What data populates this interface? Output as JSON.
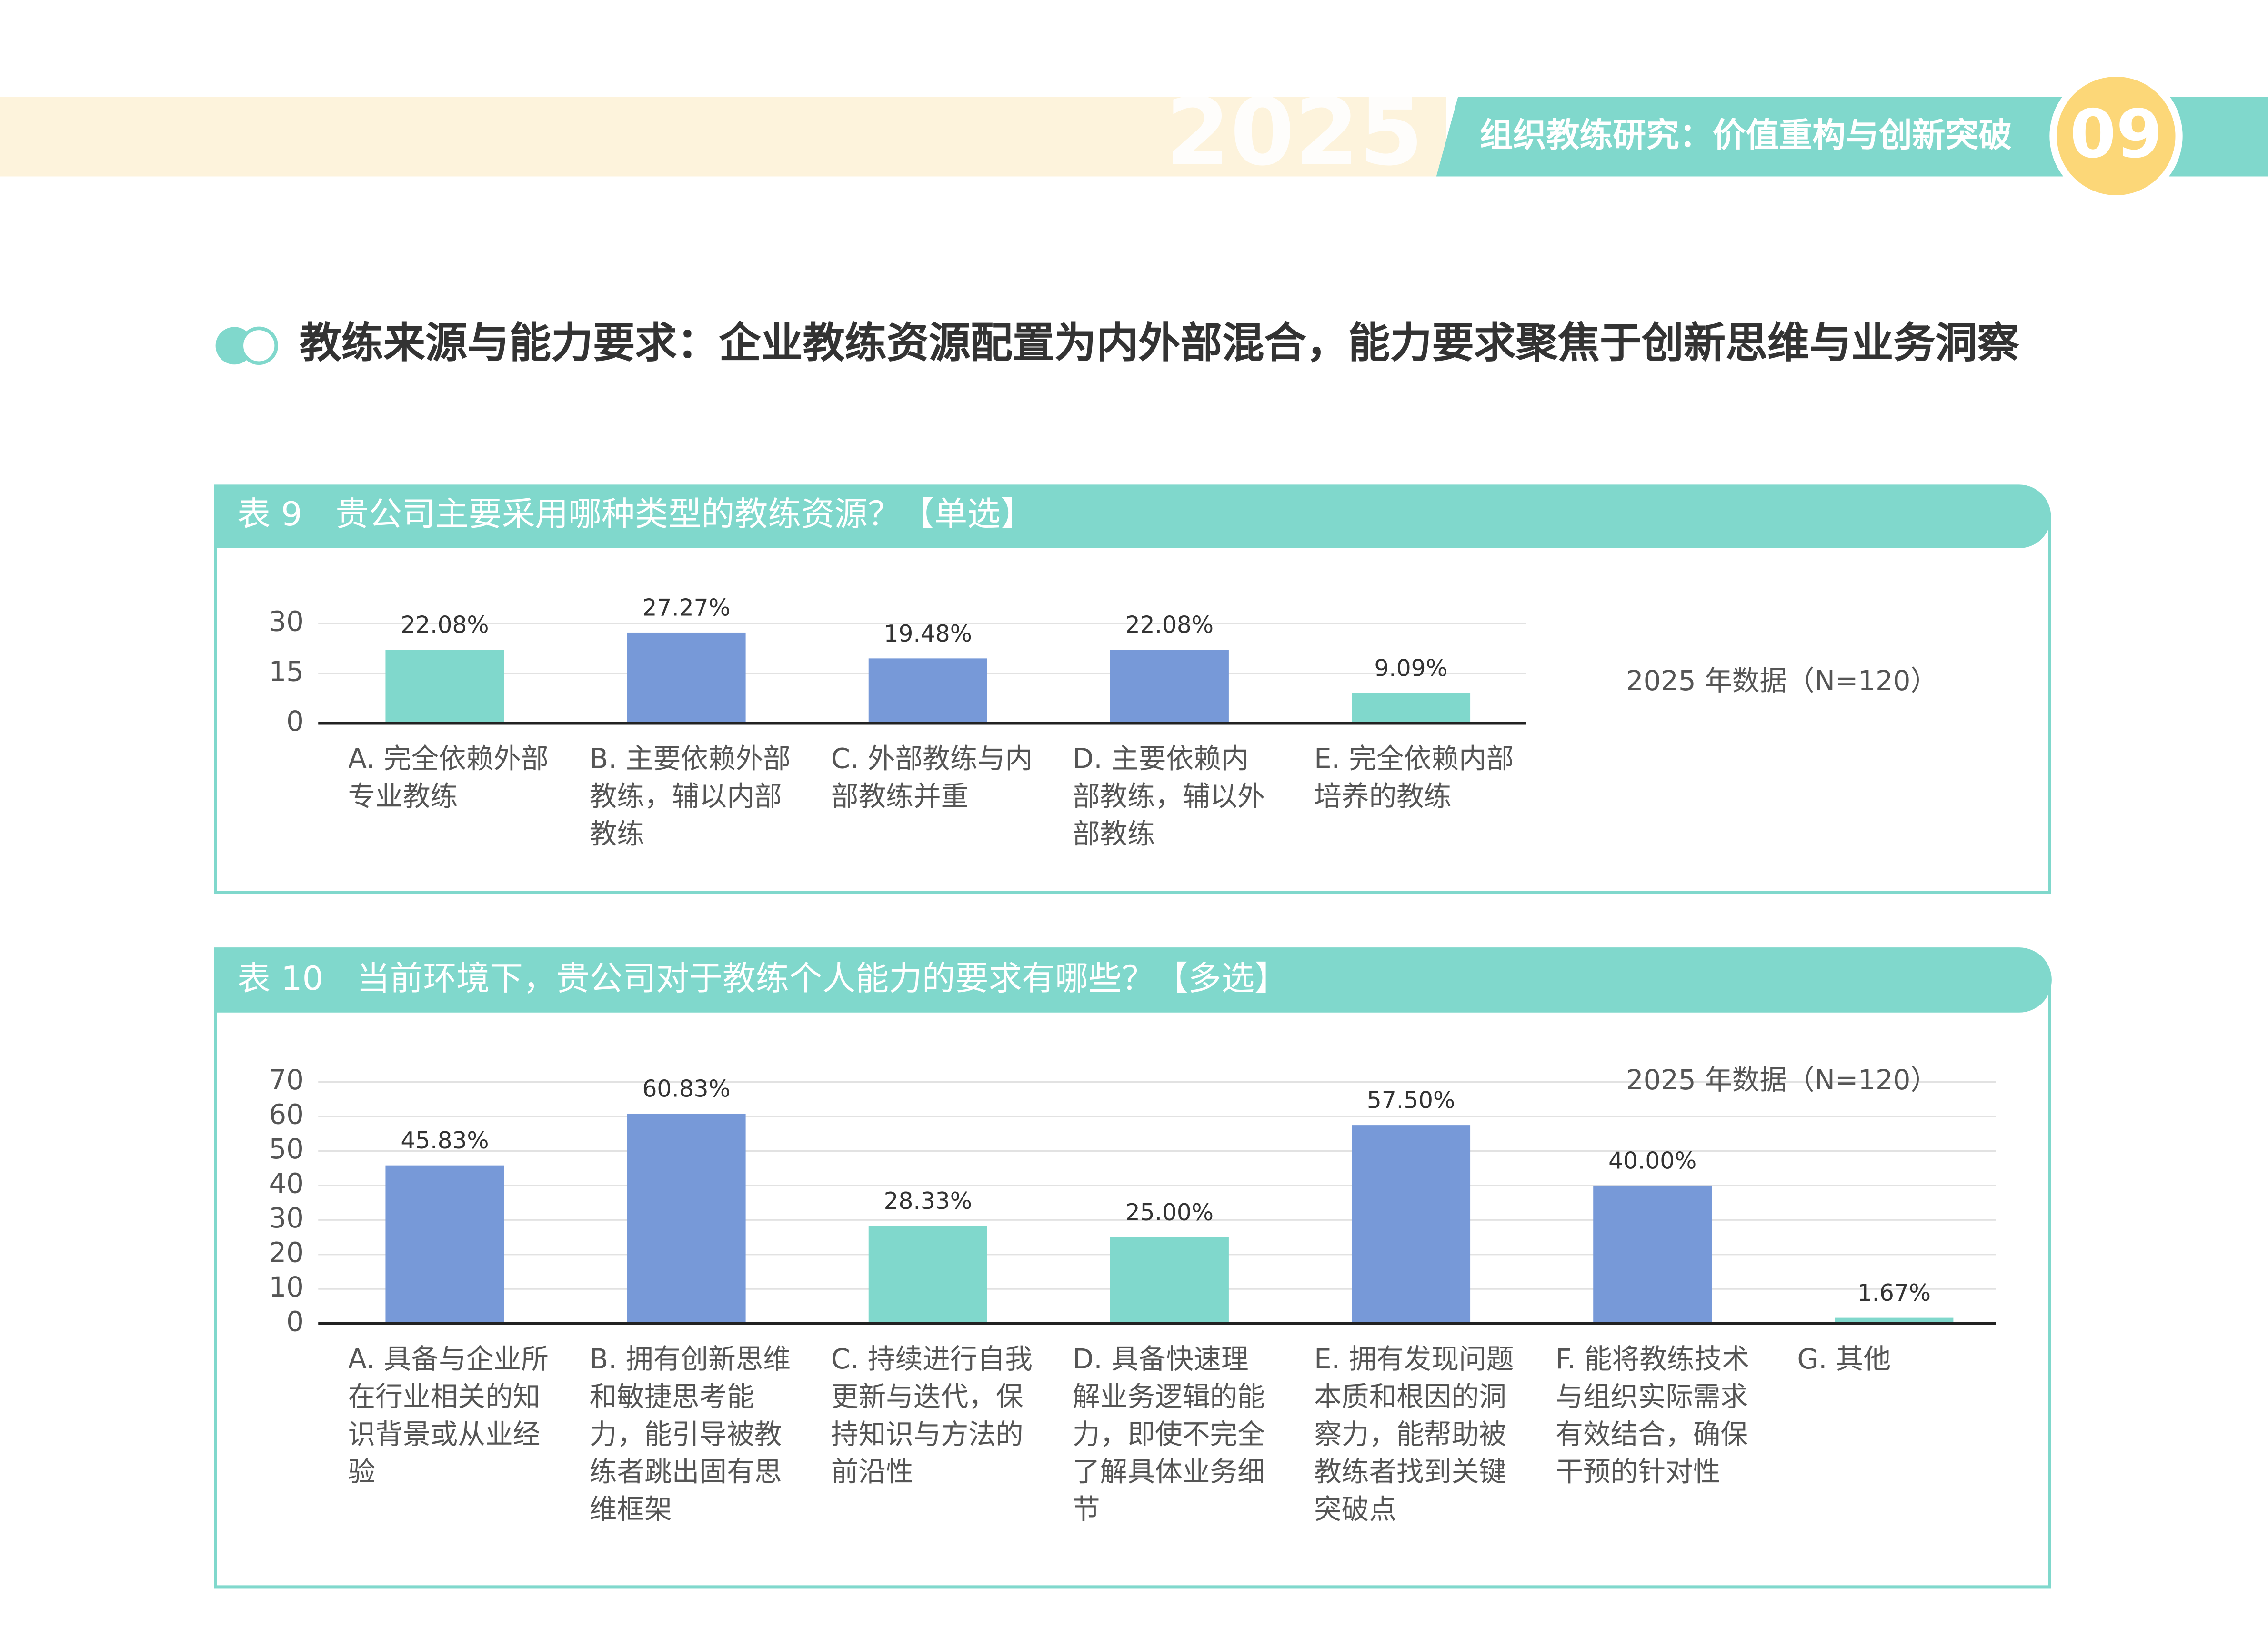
{
  "header": {
    "year": "2025",
    "title": "组织教练研究：价值重构与创新突破",
    "page": "09"
  },
  "heading": "教练来源与能力要求：企业教练资源配置为内外部混合，能力要求聚焦于创新思维与业务洞察",
  "chart_data": [
    {
      "type": "bar",
      "title": "表 9　贵公司主要采用哪种类型的教练资源？【单选】",
      "categories": [
        "A. 完全依赖外部专业教练",
        "B. 主要依赖外部教练，辅以内部教练",
        "C. 外部教练与内部教练并重",
        "D. 主要依赖内部教练，辅以外部教练",
        "E. 完全依赖内部培养的教练"
      ],
      "series": [
        {
          "name": "2025 年数据（N=120）",
          "values": [
            22.08,
            27.27,
            19.48,
            22.08,
            9.09
          ],
          "value_labels": [
            "22.08%",
            "27.27%",
            "19.48%",
            "22.08%",
            "9.09%"
          ],
          "colors": [
            "#80d8cc",
            "#7799d8",
            "#7799d8",
            "#7799d8",
            "#80d8cc"
          ]
        }
      ],
      "ylim": [
        0,
        30
      ],
      "yticks": [
        0,
        15,
        30
      ],
      "grid": true
    },
    {
      "type": "bar",
      "title": "表 10　当前环境下，贵公司对于教练个人能力的要求有哪些？【多选】",
      "categories": [
        "A. 具备与企业所在行业相关的知识背景或从业经验",
        "B. 拥有创新思维和敏捷思考能力，能引导被教练者跳出固有思维框架",
        "C. 持续进行自我更新与迭代，保持知识与方法的前沿性",
        "D. 具备快速理解业务逻辑的能力，即使不完全了解具体业务细节",
        "E. 拥有发现问题本质和根因的洞察力，能帮助被教练者找到关键突破点",
        "F. 能将教练技术与组织实际需求有效结合，确保干预的针对性",
        "G. 其他"
      ],
      "series": [
        {
          "name": "2025 年数据（N=120）",
          "values": [
            45.83,
            60.83,
            28.33,
            25.0,
            57.5,
            40.0,
            1.67
          ],
          "value_labels": [
            "45.83%",
            "60.83%",
            "28.33%",
            "25.00%",
            "57.50%",
            "40.00%",
            "1.67%"
          ],
          "colors": [
            "#7799d8",
            "#7799d8",
            "#80d8cc",
            "#80d8cc",
            "#7799d8",
            "#7799d8",
            "#80d8cc"
          ]
        }
      ],
      "ylim": [
        0,
        70
      ],
      "yticks": [
        0,
        10,
        20,
        30,
        40,
        50,
        60,
        70
      ],
      "grid": true
    }
  ]
}
